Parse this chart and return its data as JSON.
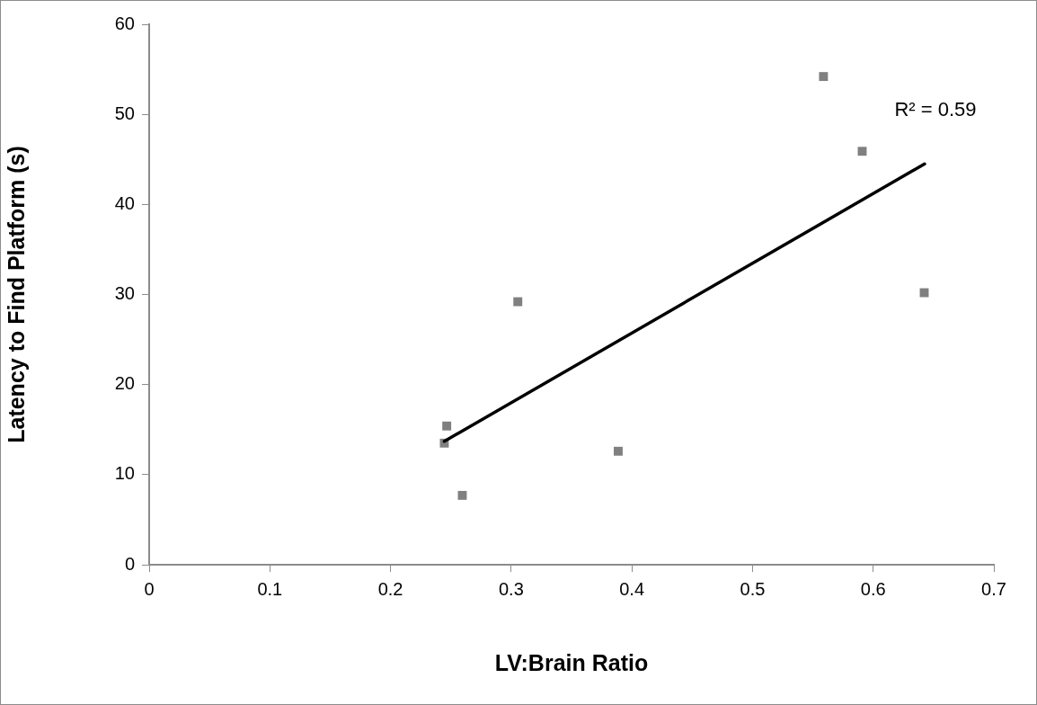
{
  "chart_data": {
    "type": "scatter",
    "xlabel": "LV:Brain Ratio",
    "ylabel": "Latency to Find Platform (s)",
    "xlim": [
      0,
      0.7
    ],
    "xticks": [
      0,
      0.1,
      0.2,
      0.3,
      0.4,
      0.5,
      0.6,
      0.7
    ],
    "ylim": [
      0,
      60
    ],
    "yticks": [
      0,
      10,
      20,
      30,
      40,
      50,
      60
    ],
    "grid": false,
    "legend": false,
    "marker": "square",
    "series": [
      {
        "color": "#808080",
        "x": [
          0.2466,
          0.2446,
          0.2595,
          0.3055,
          0.3887,
          0.5588,
          0.5909,
          0.6423
        ],
        "values": [
          15.4,
          13.5,
          7.7,
          29.2,
          12.6,
          54.2,
          45.9,
          30.2
        ]
      },
      {
        "type": "line",
        "color": "#000000",
        "marker": "none",
        "x": [
          0.2446,
          0.6426
        ],
        "values": [
          13.7,
          44.5
        ]
      }
    ],
    "annotations": [
      "R² = 0.59"
    ]
  }
}
